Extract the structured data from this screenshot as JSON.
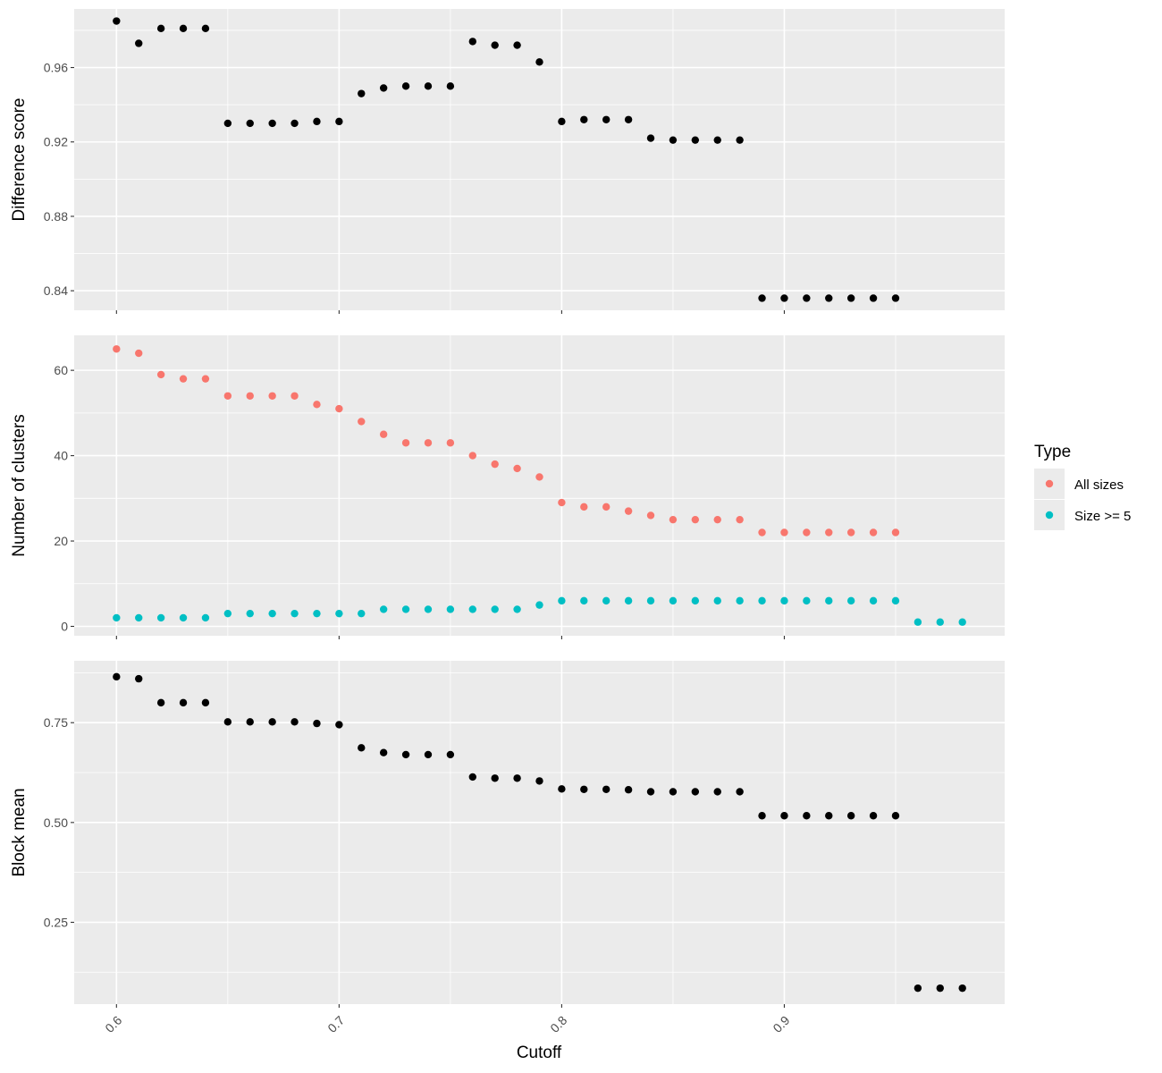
{
  "chart_data": {
    "type": "scatter",
    "xlabel": "Cutoff",
    "x_ticks": [
      "0.6",
      "0.7",
      "0.8",
      "0.9"
    ],
    "xlim": [
      0.581,
      0.999
    ],
    "grid": true,
    "legend": {
      "title": "Type",
      "placement": "right",
      "items": [
        {
          "label": "All sizes",
          "color": "#F8766D"
        },
        {
          "label": "Size >= 5",
          "color": "#00BFC4"
        }
      ]
    },
    "panels": [
      {
        "ylabel": "Difference score",
        "y_ticks": [
          "0.84",
          "0.88",
          "0.92",
          "0.96"
        ],
        "ylim": [
          0.8295,
          0.9915
        ],
        "series": [
          {
            "color": "#000000",
            "x": [
              0.6,
              0.61,
              0.62,
              0.63,
              0.64,
              0.65,
              0.66,
              0.67,
              0.68,
              0.69,
              0.7,
              0.71,
              0.72,
              0.73,
              0.74,
              0.75,
              0.76,
              0.77,
              0.78,
              0.79,
              0.8,
              0.81,
              0.82,
              0.83,
              0.84,
              0.85,
              0.86,
              0.87,
              0.88,
              0.89,
              0.9,
              0.91,
              0.92,
              0.93,
              0.94,
              0.95
            ],
            "y": [
              0.985,
              0.973,
              0.981,
              0.981,
              0.981,
              0.93,
              0.93,
              0.93,
              0.93,
              0.931,
              0.931,
              0.946,
              0.949,
              0.95,
              0.95,
              0.95,
              0.974,
              0.972,
              0.972,
              0.963,
              0.931,
              0.932,
              0.932,
              0.932,
              0.922,
              0.921,
              0.921,
              0.921,
              0.921,
              0.836,
              0.836,
              0.836,
              0.836,
              0.836,
              0.836,
              0.836
            ]
          }
        ]
      },
      {
        "ylabel": "Number of clusters",
        "y_ticks": [
          "0",
          "20",
          "40",
          "60"
        ],
        "ylim": [
          -2.2,
          68.2
        ],
        "series": [
          {
            "name": "All sizes",
            "color": "#F8766D",
            "x": [
              0.6,
              0.61,
              0.62,
              0.63,
              0.64,
              0.65,
              0.66,
              0.67,
              0.68,
              0.69,
              0.7,
              0.71,
              0.72,
              0.73,
              0.74,
              0.75,
              0.76,
              0.77,
              0.78,
              0.79,
              0.8,
              0.81,
              0.82,
              0.83,
              0.84,
              0.85,
              0.86,
              0.87,
              0.88,
              0.89,
              0.9,
              0.91,
              0.92,
              0.93,
              0.94,
              0.95
            ],
            "y": [
              65,
              64,
              59,
              58,
              58,
              54,
              54,
              54,
              54,
              52,
              51,
              48,
              45,
              43,
              43,
              43,
              40,
              38,
              37,
              35,
              29,
              28,
              28,
              27,
              26,
              25,
              25,
              25,
              25,
              22,
              22,
              22,
              22,
              22,
              22,
              22
            ]
          },
          {
            "name": "Size >= 5",
            "color": "#00BFC4",
            "x": [
              0.6,
              0.61,
              0.62,
              0.63,
              0.64,
              0.65,
              0.66,
              0.67,
              0.68,
              0.69,
              0.7,
              0.71,
              0.72,
              0.73,
              0.74,
              0.75,
              0.76,
              0.77,
              0.78,
              0.79,
              0.8,
              0.81,
              0.82,
              0.83,
              0.84,
              0.85,
              0.86,
              0.87,
              0.88,
              0.89,
              0.9,
              0.91,
              0.92,
              0.93,
              0.94,
              0.95,
              0.96,
              0.97,
              0.98
            ],
            "y": [
              2,
              2,
              2,
              2,
              2,
              3,
              3,
              3,
              3,
              3,
              3,
              3,
              4,
              4,
              4,
              4,
              4,
              4,
              4,
              5,
              6,
              6,
              6,
              6,
              6,
              6,
              6,
              6,
              6,
              6,
              6,
              6,
              6,
              6,
              6,
              6,
              1,
              1,
              1
            ]
          }
        ]
      },
      {
        "ylabel": "Block mean",
        "y_ticks": [
          "0.25",
          "0.50",
          "0.75"
        ],
        "ylim": [
          0.045,
          0.905
        ],
        "series": [
          {
            "color": "#000000",
            "x": [
              0.6,
              0.61,
              0.62,
              0.63,
              0.64,
              0.65,
              0.66,
              0.67,
              0.68,
              0.69,
              0.7,
              0.71,
              0.72,
              0.73,
              0.74,
              0.75,
              0.76,
              0.77,
              0.78,
              0.79,
              0.8,
              0.81,
              0.82,
              0.83,
              0.84,
              0.85,
              0.86,
              0.87,
              0.88,
              0.89,
              0.9,
              0.91,
              0.92,
              0.93,
              0.94,
              0.95,
              0.96,
              0.97,
              0.98
            ],
            "y": [
              0.865,
              0.86,
              0.8,
              0.8,
              0.8,
              0.752,
              0.752,
              0.752,
              0.752,
              0.748,
              0.745,
              0.687,
              0.675,
              0.67,
              0.67,
              0.67,
              0.614,
              0.611,
              0.611,
              0.604,
              0.584,
              0.583,
              0.583,
              0.582,
              0.577,
              0.577,
              0.577,
              0.577,
              0.577,
              0.517,
              0.517,
              0.517,
              0.517,
              0.517,
              0.517,
              0.517,
              0.085,
              0.085,
              0.085
            ]
          }
        ]
      }
    ]
  }
}
